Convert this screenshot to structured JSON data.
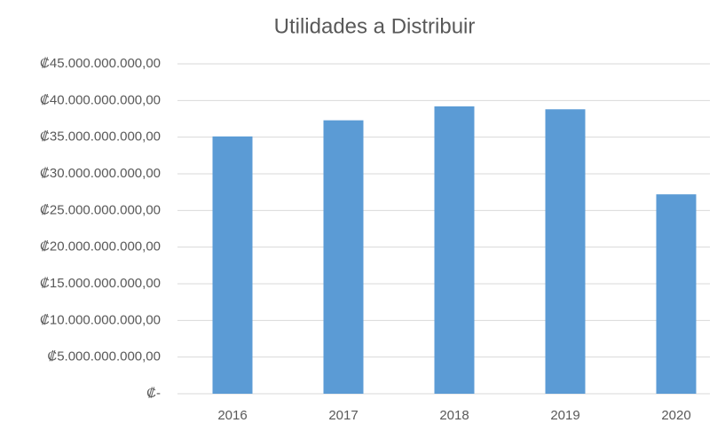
{
  "chart_data": {
    "type": "bar",
    "title": "Utilidades a Distribuir",
    "categories": [
      "2016",
      "2017",
      "2018",
      "2019",
      "2020"
    ],
    "values": [
      35100000000,
      37300000000,
      39200000000,
      38800000000,
      27200000000
    ],
    "color": "#5b9bd5",
    "ylim": [
      0,
      45000000000
    ],
    "yticks": [
      {
        "value": 0,
        "label": "₡-"
      },
      {
        "value": 5000000000,
        "label": "₡5.000.000.000,00"
      },
      {
        "value": 10000000000,
        "label": "₡10.000.000.000,00"
      },
      {
        "value": 15000000000,
        "label": "₡15.000.000.000,00"
      },
      {
        "value": 20000000000,
        "label": "₡20.000.000.000,00"
      },
      {
        "value": 25000000000,
        "label": "₡25.000.000.000,00"
      },
      {
        "value": 30000000000,
        "label": "₡30.000.000.000,00"
      },
      {
        "value": 35000000000,
        "label": "₡35.000.000.000,00"
      },
      {
        "value": 40000000000,
        "label": "₡40.000.000.000,00"
      },
      {
        "value": 45000000000,
        "label": "₡45.000.000.000,00"
      }
    ],
    "grid": true
  }
}
